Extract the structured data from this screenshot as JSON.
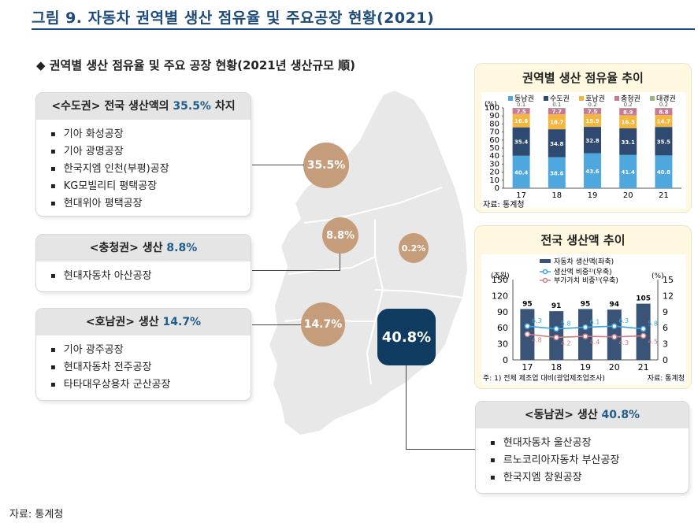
{
  "header": {
    "title": "그림 9. 자동차 권역별 생산 점유율 및 주요공장 현황(2021)"
  },
  "subheading": "◆ 권역별 생산 점유율 및 주요 공장 현황(2021년 생산규모 順)",
  "source_bottom": "자료: 통계청",
  "regions": [
    {
      "head_prefix": "<수도권> 전국 생산액의 ",
      "pct": "35.5%",
      "head_suffix": " 차지",
      "bubble": "35.5%",
      "factories": [
        "기아 화성공장",
        "기아 광명공장",
        "한국지엠 인천(부평)공장",
        "KG모빌리티 평택공장",
        "현대위아 평택공장"
      ]
    },
    {
      "head_prefix": "<충청권> 생산 ",
      "pct": "8.8%",
      "head_suffix": "",
      "bubble": "8.8%",
      "factories": [
        "현대자동차 아산공장"
      ]
    },
    {
      "head_prefix": "<호남권> 생산 ",
      "pct": "14.7%",
      "head_suffix": "",
      "bubble": "14.7%",
      "factories": [
        "기아 광주공장",
        "현대자동차 전주공장",
        "타타대우상용차 군산공장"
      ]
    },
    {
      "head_prefix": "<동남권> 생산 ",
      "pct": "40.8%",
      "head_suffix": "",
      "bubble": "40.8%",
      "factories": [
        "현대자동차 울산공장",
        "르노코리아자동차 부산공장",
        "한국지엠 창원공장"
      ]
    }
  ],
  "gangwon_bubble": "0.2%",
  "chart_data": [
    {
      "type": "bar",
      "stacked": true,
      "title": "권역별 생산 점유율 추이",
      "unit_label": "(%)",
      "categories": [
        "17",
        "18",
        "19",
        "20",
        "21"
      ],
      "ylim": [
        0,
        100
      ],
      "yticks": [
        "0",
        "10",
        "20",
        "30",
        "40",
        "50",
        "60",
        "70",
        "80",
        "90",
        "100"
      ],
      "series": [
        {
          "name": "동남권",
          "color": "#4fa8dd",
          "values": [
            40.4,
            38.6,
            43.6,
            41.4,
            40.8
          ]
        },
        {
          "name": "수도권",
          "color": "#2f4a70",
          "values": [
            35.4,
            34.8,
            32.8,
            33.1,
            35.5
          ]
        },
        {
          "name": "호남권",
          "color": "#f3b73f",
          "values": [
            16.6,
            18.7,
            15.9,
            16.3,
            14.7
          ]
        },
        {
          "name": "충청권",
          "color": "#c77a98",
          "values": [
            7.5,
            7.7,
            7.5,
            8.9,
            8.8
          ]
        },
        {
          "name": "대경권",
          "color": "#9ab57f",
          "values": [
            0.1,
            0.1,
            0.2,
            0.2,
            0.2
          ]
        }
      ],
      "source": "자료: 통계청"
    },
    {
      "type": "bar+line",
      "title": "전국 생산액 추이",
      "categories": [
        "17",
        "18",
        "19",
        "20",
        "21"
      ],
      "left_unit": "(조원)",
      "right_unit": "(%)",
      "ylim_left": [
        0,
        150
      ],
      "ylim_right": [
        0,
        15
      ],
      "yticks_left": [
        "0",
        "30",
        "60",
        "90",
        "120",
        "150"
      ],
      "yticks_right": [
        "0",
        "3",
        "6",
        "9",
        "12",
        "15"
      ],
      "bars": {
        "name": "자동차 생산액(좌축)",
        "color": "#3a5478",
        "values": [
          95,
          91,
          95,
          94,
          105
        ]
      },
      "lines": [
        {
          "name": "생산액 비중¹⁾(우축)",
          "color": "#3aa6de",
          "values": [
            6.3,
            5.8,
            6.1,
            6.3,
            5.8
          ],
          "labels": [
            "6.3",
            "5.8",
            "6.1",
            "6.3",
            "5.8"
          ]
        },
        {
          "name": "부가가치 비중¹⁾(우축)",
          "color": "#d07a82",
          "values": [
            4.8,
            4.2,
            4.4,
            4.3,
            4.5
          ],
          "labels": [
            "4.8",
            "4.2",
            "4.4",
            "4.3",
            "4.5"
          ]
        }
      ],
      "note": "주: 1) 전체 제조업 대비(광업제조업조사)",
      "source": "자료: 통계청"
    }
  ]
}
